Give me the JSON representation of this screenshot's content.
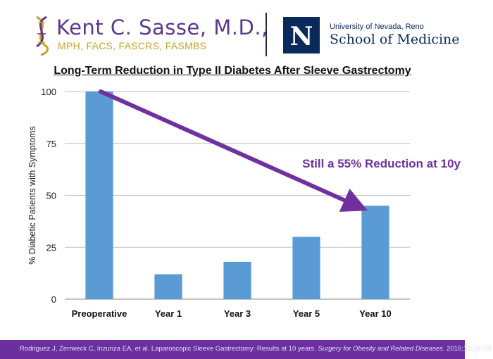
{
  "header": {
    "brand_name": "Kent C. Sasse, M.D.,",
    "brand_credentials": "MPH, FACS, FASCRS, FASMBS",
    "university_small": "University of Nevada, Reno",
    "university_school": "School of Medicine",
    "university_logo_letter": "N"
  },
  "chart_data": {
    "type": "bar",
    "title": "Long-Term Reduction in Type II Diabetes After Sleeve Gastrectomy",
    "ylabel": "% Diabetic Patients with Symptoms",
    "xlabel": "",
    "categories": [
      "Preoperative",
      "Year 1",
      "Year 3",
      "Year 5",
      "Year 10"
    ],
    "values": [
      100,
      12,
      18,
      30,
      45
    ],
    "ylim": [
      0,
      100
    ],
    "yticks": [
      0,
      25,
      50,
      75,
      100
    ],
    "grid": true,
    "bar_color": "#5b9bd5",
    "annotation": {
      "text": "Still a 55% Reduction at 10y",
      "color": "#7030a0",
      "arrow_from_category": "Preoperative",
      "arrow_from_value": 100,
      "arrow_to_category": "Year 10",
      "arrow_to_value": 45
    }
  },
  "footer": {
    "citation_prefix": "Rodriguez J, Zerrweck C, Inzunza EA, et al. Laparoscopic Sleeve Gastrectomy: Results at 10 years. ",
    "citation_journal": "Surgery for Obesity and Related Diseases",
    "citation_suffix": ". 2016;12:S8-S9.",
    "background": "#6b2fa0"
  }
}
